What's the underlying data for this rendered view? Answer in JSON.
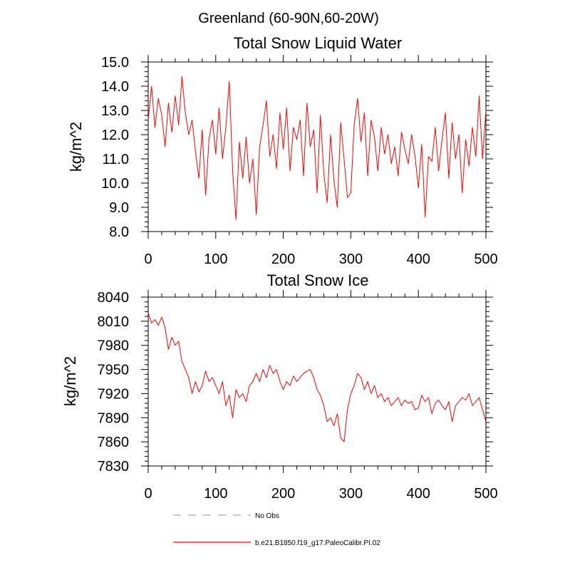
{
  "figure": {
    "title": "Greenland (60-90N,60-20W)"
  },
  "series_colors": {
    "model": "#ff0000",
    "obs": "#a0a0e0"
  },
  "legend": [
    {
      "label": "No Obs",
      "style": "dashed",
      "color": "#a0a0e0"
    },
    {
      "label": "b.e21.B1850.f19_g17.PaleoCalibr.PI.02",
      "style": "solid",
      "color": "#ff0000"
    }
  ],
  "chart_data": [
    {
      "type": "line",
      "title": "Total Snow Liquid Water",
      "xlabel": "",
      "ylabel": "kg/m^2",
      "xlim": [
        0,
        500
      ],
      "ylim": [
        8.0,
        15.0
      ],
      "xticks": [
        0,
        100,
        200,
        300,
        400,
        500
      ],
      "xtick_labels": [
        "0",
        "100",
        "200",
        "300",
        "400",
        "500"
      ],
      "yticks": [
        8,
        9,
        10,
        11,
        12,
        13,
        14,
        15
      ],
      "ytick_labels": [
        "8.0",
        "9.0",
        "10.0",
        "11.0",
        "12.0",
        "13.0",
        "14.0",
        "15.0"
      ],
      "series": [
        {
          "name": "b.e21.B1850.f19_g17.PaleoCalibr.PI.02",
          "x": [
            0,
            5,
            10,
            15,
            20,
            25,
            30,
            35,
            40,
            45,
            50,
            55,
            60,
            65,
            70,
            75,
            80,
            85,
            90,
            95,
            100,
            105,
            110,
            115,
            120,
            125,
            130,
            135,
            140,
            145,
            150,
            155,
            160,
            165,
            170,
            175,
            180,
            185,
            190,
            195,
            200,
            205,
            210,
            215,
            220,
            225,
            230,
            235,
            240,
            245,
            250,
            255,
            260,
            265,
            270,
            275,
            280,
            285,
            290,
            295,
            300,
            305,
            310,
            315,
            320,
            325,
            330,
            335,
            340,
            345,
            350,
            355,
            360,
            365,
            370,
            375,
            380,
            385,
            390,
            395,
            400,
            405,
            410,
            415,
            420,
            425,
            430,
            435,
            440,
            445,
            450,
            455,
            460,
            465,
            470,
            475,
            480,
            485,
            490,
            495,
            500
          ],
          "values": [
            12.6,
            14.0,
            12.3,
            13.5,
            12.8,
            11.5,
            13.3,
            12.1,
            13.6,
            12.4,
            14.4,
            12.9,
            12.0,
            12.6,
            11.3,
            10.2,
            12.2,
            9.5,
            11.8,
            12.6,
            11.2,
            13.1,
            11.0,
            12.3,
            14.2,
            10.5,
            8.5,
            11.7,
            10.2,
            11.9,
            10.0,
            11.0,
            8.7,
            11.5,
            12.4,
            13.4,
            11.1,
            12.0,
            10.6,
            12.9,
            11.4,
            13.1,
            10.5,
            12.3,
            11.8,
            12.6,
            10.3,
            13.3,
            11.5,
            12.2,
            9.6,
            12.8,
            10.4,
            9.2,
            12.0,
            10.1,
            9.0,
            12.5,
            11.0,
            9.4,
            9.6,
            12.4,
            13.5,
            11.7,
            12.9,
            10.3,
            12.6,
            11.9,
            10.5,
            12.3,
            11.2,
            12.0,
            10.8,
            11.5,
            10.3,
            12.1,
            11.4,
            10.8,
            12.0,
            11.1,
            9.8,
            11.6,
            8.6,
            11.1,
            10.9,
            12.3,
            10.5,
            11.8,
            12.9,
            10.2,
            12.5,
            11.0,
            12.0,
            9.6,
            11.8,
            10.7,
            12.3,
            11.1,
            13.6,
            11.0,
            13.0
          ]
        }
      ]
    },
    {
      "type": "line",
      "title": "Total Snow Ice",
      "xlabel": "",
      "ylabel": "kg/m^2",
      "xlim": [
        0,
        500
      ],
      "ylim": [
        7830,
        8040
      ],
      "xticks": [
        0,
        100,
        200,
        300,
        400,
        500
      ],
      "xtick_labels": [
        "0",
        "100",
        "200",
        "300",
        "400",
        "500"
      ],
      "yticks": [
        7830,
        7860,
        7890,
        7920,
        7950,
        7980,
        8010,
        8040
      ],
      "ytick_labels": [
        "7830",
        "7860",
        "7890",
        "7920",
        "7950",
        "7980",
        "8010",
        "8040"
      ],
      "series": [
        {
          "name": "b.e21.B1850.f19_g17.PaleoCalibr.PI.02",
          "x": [
            0,
            5,
            10,
            15,
            20,
            25,
            30,
            35,
            40,
            45,
            50,
            55,
            60,
            65,
            70,
            75,
            80,
            85,
            90,
            95,
            100,
            105,
            110,
            115,
            120,
            125,
            130,
            135,
            140,
            145,
            150,
            155,
            160,
            165,
            170,
            175,
            180,
            185,
            190,
            195,
            200,
            205,
            210,
            215,
            220,
            225,
            230,
            235,
            240,
            245,
            250,
            255,
            260,
            265,
            270,
            275,
            280,
            285,
            290,
            295,
            300,
            305,
            310,
            315,
            320,
            325,
            330,
            335,
            340,
            345,
            350,
            355,
            360,
            365,
            370,
            375,
            380,
            385,
            390,
            395,
            400,
            405,
            410,
            415,
            420,
            425,
            430,
            435,
            440,
            445,
            450,
            455,
            460,
            465,
            470,
            475,
            480,
            485,
            490,
            495,
            500
          ],
          "values": [
            8020,
            8008,
            8012,
            8005,
            8015,
            8002,
            7975,
            7990,
            7980,
            7985,
            7960,
            7950,
            7940,
            7920,
            7935,
            7922,
            7930,
            7948,
            7935,
            7940,
            7930,
            7920,
            7935,
            7905,
            7918,
            7890,
            7925,
            7915,
            7920,
            7910,
            7930,
            7935,
            7945,
            7935,
            7950,
            7940,
            7955,
            7945,
            7950,
            7935,
            7925,
            7935,
            7930,
            7942,
            7935,
            7940,
            7945,
            7948,
            7950,
            7940,
            7925,
            7918,
            7905,
            7885,
            7890,
            7880,
            7895,
            7865,
            7860,
            7900,
            7920,
            7930,
            7945,
            7940,
            7925,
            7935,
            7920,
            7930,
            7915,
            7920,
            7910,
            7915,
            7905,
            7910,
            7915,
            7905,
            7912,
            7908,
            7910,
            7900,
            7902,
            7918,
            7910,
            7915,
            7895,
            7908,
            7912,
            7905,
            7900,
            7910,
            7885,
            7905,
            7910,
            7915,
            7912,
            7920,
            7905,
            7910,
            7915,
            7900,
            7885
          ]
        }
      ]
    }
  ]
}
